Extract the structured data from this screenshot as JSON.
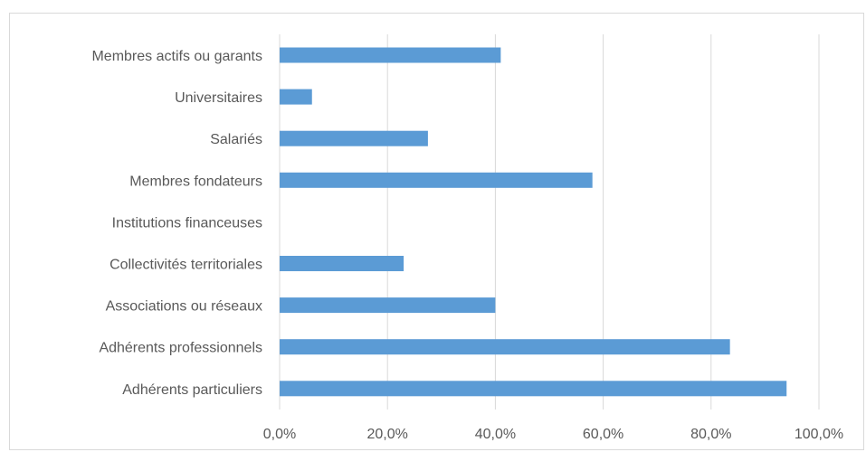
{
  "chart_data": {
    "type": "bar",
    "orientation": "horizontal",
    "categories": [
      "Membres actifs ou garants",
      "Universitaires",
      "Salariés",
      "Membres fondateurs",
      "Institutions financeuses",
      "Collectivités territoriales",
      "Associations ou réseaux",
      "Adhérents professionnels",
      "Adhérents particuliers"
    ],
    "values": [
      0.41,
      0.06,
      0.275,
      0.58,
      0.0,
      0.23,
      0.4,
      0.835,
      0.94
    ],
    "xlim": [
      0,
      1
    ],
    "xticks": [
      0,
      0.2,
      0.4,
      0.6,
      0.8,
      1.0
    ],
    "xtick_labels": [
      "0,0%",
      "20,0%",
      "40,0%",
      "60,0%",
      "80,0%",
      "100,0%"
    ],
    "grid": true,
    "bar_color": "#5b9bd5",
    "title": "",
    "xlabel": "",
    "ylabel": ""
  }
}
